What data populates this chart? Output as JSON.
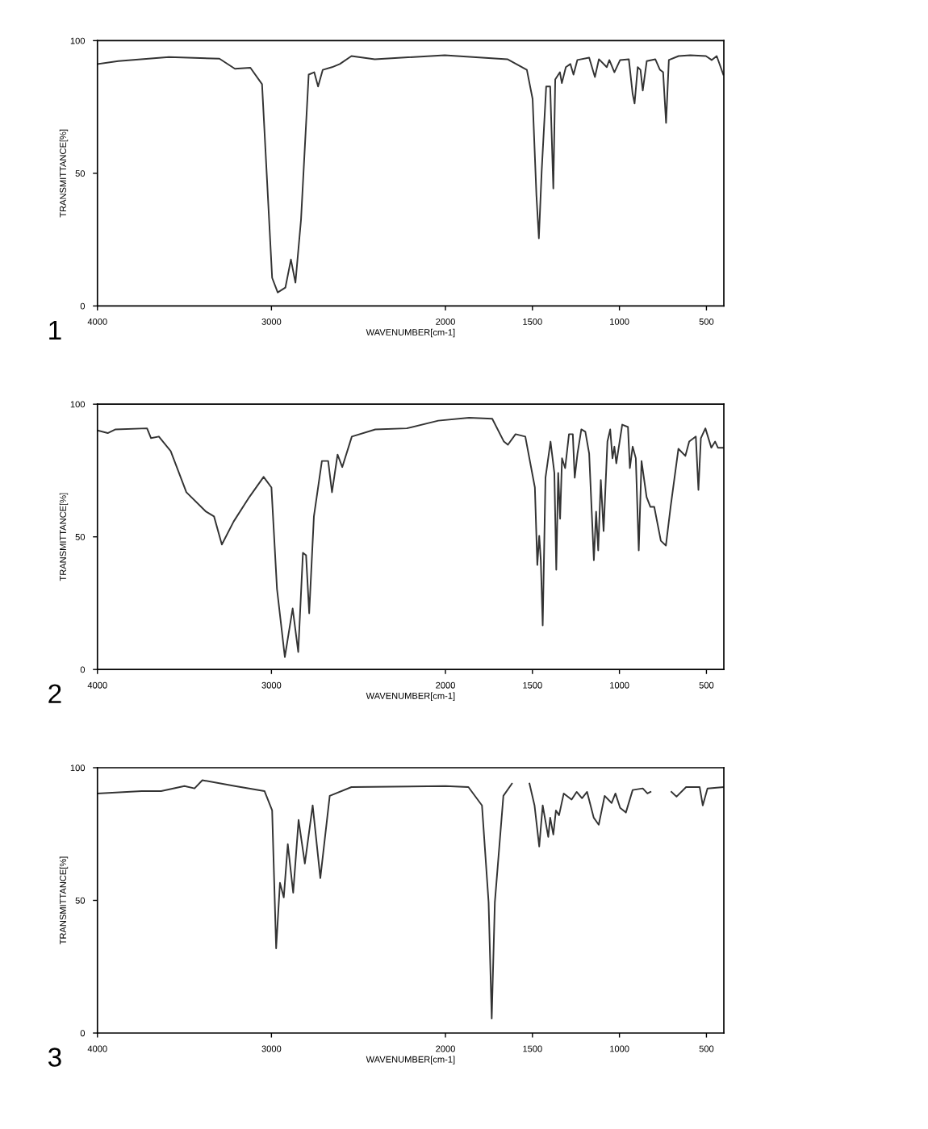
{
  "chart_data": [
    {
      "type": "line",
      "xlabel": "WAVENUMBER[cm-1]",
      "ylabel": "TRANSMITTANCE[%]",
      "annotations": [
        "1"
      ],
      "x": [
        4000,
        3880,
        3589,
        3299,
        3210,
        3121,
        3054,
        2996,
        2964,
        2920,
        2888,
        2862,
        2830,
        2786,
        2754,
        2732,
        2705,
        2652,
        2607,
        2540,
        2406,
        2004,
        1644,
        1532,
        1499,
        1477,
        1463,
        1447,
        1421,
        1398,
        1380,
        1369,
        1342,
        1331,
        1308,
        1282,
        1264,
        1242,
        1174,
        1141,
        1118,
        1073,
        1058,
        1029,
        996,
        946,
        924,
        913,
        895,
        879,
        866,
        843,
        794,
        767,
        749,
        732,
        716,
        660,
        593,
        503,
        470,
        441,
        403
      ],
      "series": [
        {
          "color": "#333333",
          "values": [
            91.2,
            92.3,
            93.8,
            93.2,
            89.4,
            89.8,
            83.6,
            10.6,
            5.1,
            6.9,
            17.5,
            8.8,
            32.5,
            87.2,
            88.1,
            82.7,
            89,
            90,
            91.2,
            94.2,
            93,
            94.5,
            93,
            89,
            78,
            41.6,
            25.5,
            50.7,
            82.7,
            82.7,
            44.3,
            85.4,
            88.1,
            84,
            90,
            91.2,
            87.2,
            92.7,
            93.6,
            86.3,
            93,
            90,
            92.7,
            88.1,
            92.7,
            93,
            79.9,
            76.3,
            90,
            89,
            81.2,
            92.3,
            93,
            89,
            88.1,
            69,
            92.7,
            94.2,
            94.5,
            94.2,
            92.7,
            94.2,
            87.2
          ]
        }
      ],
      "xlim": [
        4000,
        400
      ],
      "ylim": [
        0,
        100
      ],
      "xticks": [
        4000,
        3000,
        2000,
        1500,
        1000,
        500
      ],
      "yticks": [
        0,
        50,
        100
      ]
    },
    {
      "type": "line",
      "xlabel": "WAVENUMBER[cm-1]",
      "ylabel": "TRANSMITTANCE[%]",
      "annotations": [
        "2"
      ],
      "x": [
        4000,
        3941,
        3896,
        3715,
        3692,
        3647,
        3579,
        3489,
        3376,
        3330,
        3285,
        3217,
        3127,
        3045,
        3000,
        2968,
        2923,
        2878,
        2846,
        2819,
        2801,
        2783,
        2756,
        2710,
        2674,
        2652,
        2620,
        2593,
        2538,
        2403,
        2222,
        2041,
        1864,
        1731,
        1664,
        1641,
        1597,
        1541,
        1486,
        1472,
        1461,
        1452,
        1441,
        1425,
        1396,
        1374,
        1363,
        1352,
        1341,
        1330,
        1312,
        1290,
        1268,
        1257,
        1241,
        1219,
        1196,
        1174,
        1147,
        1134,
        1122,
        1107,
        1091,
        1069,
        1053,
        1040,
        1029,
        1018,
        984,
        951,
        940,
        924,
        906,
        889,
        873,
        844,
        822,
        800,
        762,
        733,
        706,
        661,
        621,
        599,
        561,
        546,
        532,
        506,
        472,
        450,
        434,
        405
      ],
      "series": [
        {
          "color": "#333333",
          "values": [
            90.1,
            89.1,
            90.5,
            90.9,
            87.2,
            87.8,
            82.3,
            66.8,
            59.5,
            57.7,
            47.1,
            55.8,
            65,
            72.6,
            68.6,
            30.3,
            4.7,
            23,
            6.6,
            44,
            43.1,
            21.2,
            57.7,
            78.6,
            78.6,
            66.8,
            81,
            76.3,
            87.8,
            90.5,
            90.9,
            93.8,
            94.9,
            94.5,
            85.9,
            84.7,
            88.7,
            87.8,
            68.6,
            39.4,
            50.4,
            41.2,
            16.6,
            72.3,
            85.9,
            74.1,
            37.6,
            74.1,
            56.8,
            79.6,
            75.9,
            88.7,
            88.7,
            72.3,
            81.4,
            90.5,
            89.6,
            81.4,
            41.2,
            59.5,
            44.9,
            71.4,
            52.2,
            85.9,
            90.5,
            79.6,
            84,
            77.7,
            92.3,
            91.4,
            75.9,
            84,
            79.6,
            44.9,
            78.6,
            65,
            61.3,
            61.3,
            48.5,
            46.7,
            61.3,
            83.2,
            80.5,
            85.9,
            87.8,
            67.7,
            87.2,
            90.9,
            83.6,
            85.9,
            83.6,
            83.6
          ]
        }
      ],
      "xlim": [
        4000,
        400
      ],
      "ylim": [
        0,
        100
      ],
      "xticks": [
        4000,
        3000,
        2000,
        1500,
        1000,
        500
      ],
      "yticks": [
        0,
        50,
        100
      ]
    },
    {
      "type": "line",
      "xlabel": "WAVENUMBER[cm-1]",
      "ylabel": "TRANSMITTANCE[%]",
      "annotations": [
        "3"
      ],
      "x": [
        4000,
        3746,
        3634,
        3500,
        3442,
        3397,
        3210,
        3040,
        2996,
        2973,
        2951,
        2929,
        2906,
        2875,
        2844,
        2808,
        2763,
        2719,
        2665,
        2540,
        2000,
        1868,
        1790,
        1752,
        1734,
        1716,
        1667,
        1618,
        1570,
        1517,
        1488,
        1461,
        1441,
        1409,
        1398,
        1380,
        1365,
        1347,
        1320,
        1275,
        1246,
        1215,
        1186,
        1148,
        1119,
        1085,
        1045,
        1023,
        996,
        963,
        924,
        866,
        839,
        821,
        760,
        701,
        672,
        617,
        539,
        521,
        494,
        405
      ],
      "series": [
        {
          "color": "#333333",
          "values": [
            90.3,
            91.2,
            91.2,
            93.1,
            92.2,
            95.3,
            93.1,
            91.2,
            83.9,
            31.9,
            56.6,
            51.1,
            71.2,
            52.9,
            80.3,
            63.9,
            85.8,
            58.4,
            89.4,
            92.7,
            93.1,
            92.7,
            85.8,
            49.3,
            5.5,
            49.3,
            89.4,
            94,
            null,
            94,
            85.8,
            70.3,
            85.8,
            73.9,
            81.2,
            74.8,
            83.9,
            82.1,
            90.3,
            88,
            90.9,
            88.5,
            90.9,
            81.2,
            78.5,
            89.4,
            86.7,
            90.3,
            84.9,
            83.1,
            91.6,
            92.2,
            90.3,
            90.9,
            null,
            90.9,
            89.1,
            92.7,
            92.7,
            85.8,
            92.2,
            92.7
          ]
        }
      ],
      "xlim": [
        4000,
        400
      ],
      "ylim": [
        0,
        100
      ],
      "xticks": [
        4000,
        3000,
        2000,
        1500,
        1000,
        500
      ],
      "yticks": [
        0,
        50,
        100
      ]
    }
  ]
}
